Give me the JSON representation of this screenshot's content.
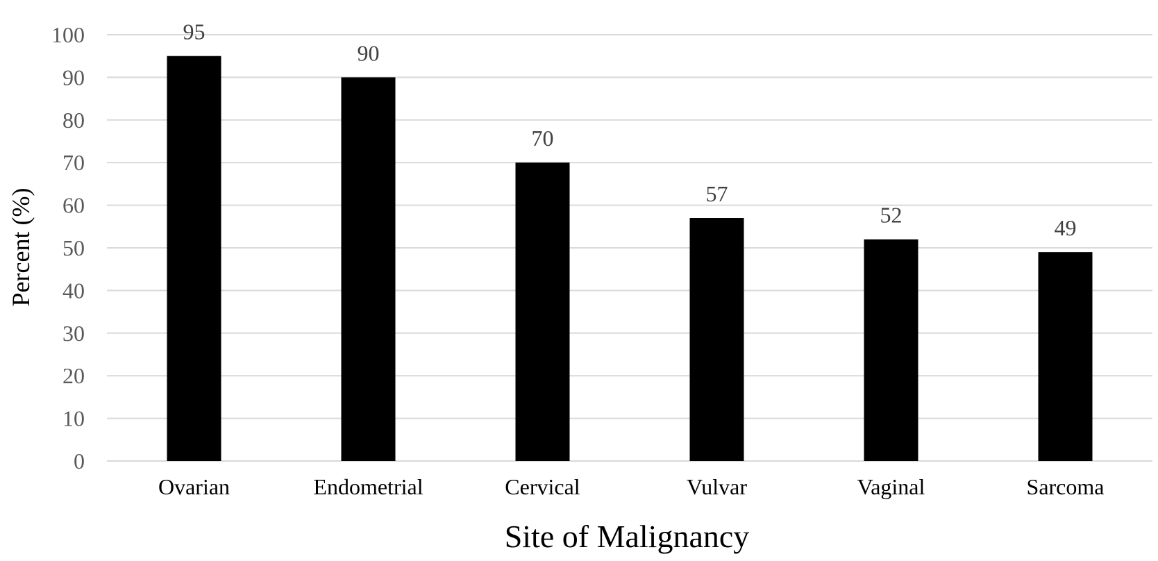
{
  "chart_data": {
    "type": "bar",
    "title": "",
    "xlabel": "Site of Malignancy",
    "ylabel": "Percent (%)",
    "categories": [
      "Ovarian",
      "Endometrial",
      "Cervical",
      "Vulvar",
      "Vaginal",
      "Sarcoma"
    ],
    "values": [
      95,
      90,
      70,
      57,
      52,
      49
    ],
    "data_labels": [
      "95",
      "90",
      "70",
      "57",
      "52",
      "49"
    ],
    "ylim": [
      0,
      100
    ],
    "yticks": [
      "0",
      "10",
      "20",
      "30",
      "40",
      "50",
      "60",
      "70",
      "80",
      "90",
      "100"
    ],
    "grid": "horizontal",
    "legend": "none",
    "colors": {
      "bar": "#000000",
      "grid": "#d9d9d9",
      "tick_text": "#595959",
      "label_text": "#404040"
    }
  }
}
